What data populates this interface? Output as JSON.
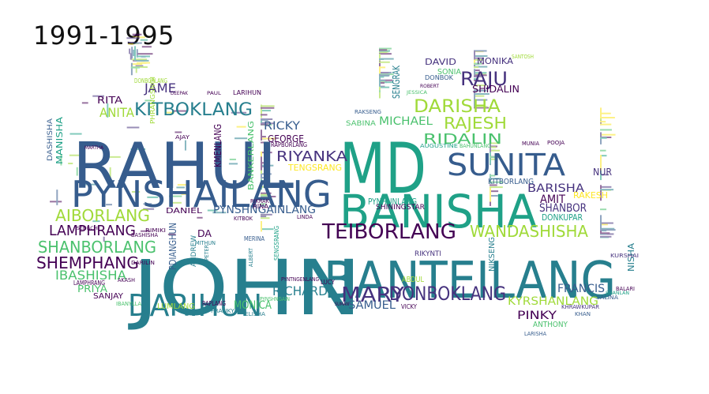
{
  "title": "1991-1995",
  "palette": [
    "#440154",
    "#46327e",
    "#365c8d",
    "#277f8e",
    "#1fa187",
    "#4ac16d",
    "#a0da39",
    "#fde725"
  ],
  "words": [
    {
      "text": "JOHN",
      "color": "#277f8e"
    },
    {
      "text": "RAHUL",
      "color": "#365c8d"
    },
    {
      "text": "MD",
      "color": "#1fa187"
    },
    {
      "text": "BANTEILANG",
      "color": "#277f8e"
    },
    {
      "text": "BANISHA",
      "color": "#1fa187"
    },
    {
      "text": "PYNSHAILANG",
      "color": "#365c8d"
    },
    {
      "text": "SUNITA",
      "color": "#365c8d"
    },
    {
      "text": "DARIHUN",
      "color": "#277f8e"
    },
    {
      "text": "TEIBORLANG",
      "color": "#440154"
    },
    {
      "text": "MARY",
      "color": "#46327e"
    },
    {
      "text": "DONBOKLANG",
      "color": "#46327e"
    },
    {
      "text": "KITBOKLANG",
      "color": "#277f8e"
    },
    {
      "text": "WANDASHISHA",
      "color": "#a0da39"
    },
    {
      "text": "SHANBORLANG",
      "color": "#4ac16d"
    },
    {
      "text": "SHEMPHANG",
      "color": "#440154"
    },
    {
      "text": "AIBORLANG",
      "color": "#a0da39"
    },
    {
      "text": "LAMPHRANG",
      "color": "#440154"
    },
    {
      "text": "IBASHISHA",
      "color": "#4ac16d"
    },
    {
      "text": "DARISHA",
      "color": "#a0da39"
    },
    {
      "text": "RAJESH",
      "color": "#a0da39"
    },
    {
      "text": "RAJU",
      "color": "#46327e"
    },
    {
      "text": "RIDALIN",
      "color": "#4ac16d"
    },
    {
      "text": "RIYANKA",
      "color": "#46327e"
    },
    {
      "text": "PYNSHNGAINLANG",
      "color": "#365c8d"
    },
    {
      "text": "RICHARD",
      "color": "#277f8e"
    },
    {
      "text": "KYRSHANLANG",
      "color": "#a0da39"
    },
    {
      "text": "SAMUEL",
      "color": "#365c8d"
    },
    {
      "text": "MONICA",
      "color": "#4ac16d"
    },
    {
      "text": "BARISHA",
      "color": "#46327e"
    },
    {
      "text": "SHANBOR",
      "color": "#46327e"
    },
    {
      "text": "MICHAEL",
      "color": "#4ac16d"
    },
    {
      "text": "ANITA",
      "color": "#a0da39"
    },
    {
      "text": "JAME",
      "color": "#46327e"
    },
    {
      "text": "RICKY",
      "color": "#365c8d"
    },
    {
      "text": "GEORGE",
      "color": "#440154"
    },
    {
      "text": "TENGSRANG",
      "color": "#fde725"
    },
    {
      "text": "FRANCIS",
      "color": "#365c8d"
    },
    {
      "text": "AMIT",
      "color": "#440154"
    },
    {
      "text": "PINKY",
      "color": "#440154"
    },
    {
      "text": "DAVID",
      "color": "#46327e"
    },
    {
      "text": "MONIKA",
      "color": "#46327e"
    },
    {
      "text": "SHIDALIN",
      "color": "#440154"
    },
    {
      "text": "SONIA",
      "color": "#4ac16d"
    },
    {
      "text": "DONBOK",
      "color": "#365c8d"
    },
    {
      "text": "SENGRAK",
      "color": "#277f8e"
    },
    {
      "text": "KITBORLANG",
      "color": "#365c8d"
    },
    {
      "text": "PYNHUNLANG",
      "color": "#1fa187"
    },
    {
      "text": "SHININGSTAR",
      "color": "#440154"
    },
    {
      "text": "NUR",
      "color": "#46327e"
    },
    {
      "text": "RAKESH",
      "color": "#fde725"
    },
    {
      "text": "DONKUPAR",
      "color": "#1fa187"
    },
    {
      "text": "PDIANGHUN",
      "color": "#365c8d"
    },
    {
      "text": "DANIEL",
      "color": "#440154"
    },
    {
      "text": "KMENLANG",
      "color": "#440154"
    },
    {
      "text": "BANKERLANG",
      "color": "#4ac16d"
    },
    {
      "text": "RAPBORLANG",
      "color": "#440154"
    },
    {
      "text": "SABINA",
      "color": "#4ac16d"
    },
    {
      "text": "PRIYA",
      "color": "#4ac16d"
    },
    {
      "text": "SANJAY",
      "color": "#440154"
    },
    {
      "text": "LUMLANG",
      "color": "#a0da39"
    },
    {
      "text": "ANTHONY",
      "color": "#4ac16d"
    },
    {
      "text": "ABDUL",
      "color": "#a0da39"
    },
    {
      "text": "RITA",
      "color": "#440154"
    },
    {
      "text": "MANISHA",
      "color": "#1fa187"
    },
    {
      "text": "DASHISHA",
      "color": "#365c8d"
    },
    {
      "text": "DA",
      "color": "#440154"
    },
    {
      "text": "ANDREW",
      "color": "#277f8e"
    },
    {
      "text": "DONBORLANG",
      "color": "#a0da39"
    },
    {
      "text": "NISHA",
      "color": "#277f8e"
    },
    {
      "text": "NIKSENG",
      "color": "#277f8e"
    },
    {
      "text": "RIKYNTI",
      "color": "#46327e"
    },
    {
      "text": "VICKY",
      "color": "#440154"
    },
    {
      "text": "LARISHA",
      "color": "#365c8d"
    },
    {
      "text": "KHRAWKUPAR",
      "color": "#46327e"
    },
    {
      "text": "LAMPHRANG",
      "color": "#440154"
    },
    {
      "text": "IBANYLLA",
      "color": "#4ac16d"
    },
    {
      "text": "RAPLANG",
      "color": "#440154"
    },
    {
      "text": "FRANKY",
      "color": "#277f8e"
    },
    {
      "text": "ELISHA",
      "color": "#277f8e"
    },
    {
      "text": "LUCY",
      "color": "#440154"
    },
    {
      "text": "LINDA",
      "color": "#440154"
    },
    {
      "text": "RINA",
      "color": "#440154"
    },
    {
      "text": "MERINA",
      "color": "#365c8d"
    },
    {
      "text": "KITBOK",
      "color": "#440154"
    },
    {
      "text": "AKASH",
      "color": "#440154"
    },
    {
      "text": "MITHUN",
      "color": "#277f8e"
    },
    {
      "text": "PETER",
      "color": "#277f8e"
    },
    {
      "text": "ALBERT",
      "color": "#277f8e"
    },
    {
      "text": "SUMAN",
      "color": "#440154"
    },
    {
      "text": "ROBERT",
      "color": "#440154"
    },
    {
      "text": "JESSICA",
      "color": "#4ac16d"
    },
    {
      "text": "POOJA",
      "color": "#440154"
    },
    {
      "text": "SALINA",
      "color": "#365c8d"
    },
    {
      "text": "KHAN",
      "color": "#365c8d"
    },
    {
      "text": "SANTOSH",
      "color": "#a0da39"
    },
    {
      "text": "RIMIKI",
      "color": "#440154"
    },
    {
      "text": "BASHISHA",
      "color": "#440154"
    },
    {
      "text": "SENGCHI",
      "color": "#440154"
    },
    {
      "text": "PYNTNGENLANG",
      "color": "#440154"
    },
    {
      "text": "PYNSHNGAIN",
      "color": "#4ac16d"
    },
    {
      "text": "RIKRAK",
      "color": "#440154"
    },
    {
      "text": "SENGSRANG",
      "color": "#1fa187"
    },
    {
      "text": "PHRANGSNGI",
      "color": "#a0da39"
    },
    {
      "text": "AJAY",
      "color": "#440154"
    },
    {
      "text": "DEEPAK",
      "color": "#440154"
    },
    {
      "text": "PAUL",
      "color": "#440154"
    },
    {
      "text": "LARIHUN",
      "color": "#440154"
    },
    {
      "text": "BAHUNLANG",
      "color": "#4ac16d"
    },
    {
      "text": "AUGUSTINE",
      "color": "#1fa187"
    },
    {
      "text": "MUNIA",
      "color": "#440154"
    },
    {
      "text": "RAKSENG",
      "color": "#365c8d"
    },
    {
      "text": "DARILIN",
      "color": "#440154"
    },
    {
      "text": "BALARI",
      "color": "#440154"
    },
    {
      "text": "SHANLAN",
      "color": "#1fa187"
    },
    {
      "text": "KURSHAI",
      "color": "#46327e"
    },
    {
      "text": "MARTHA",
      "color": "#440154"
    }
  ]
}
